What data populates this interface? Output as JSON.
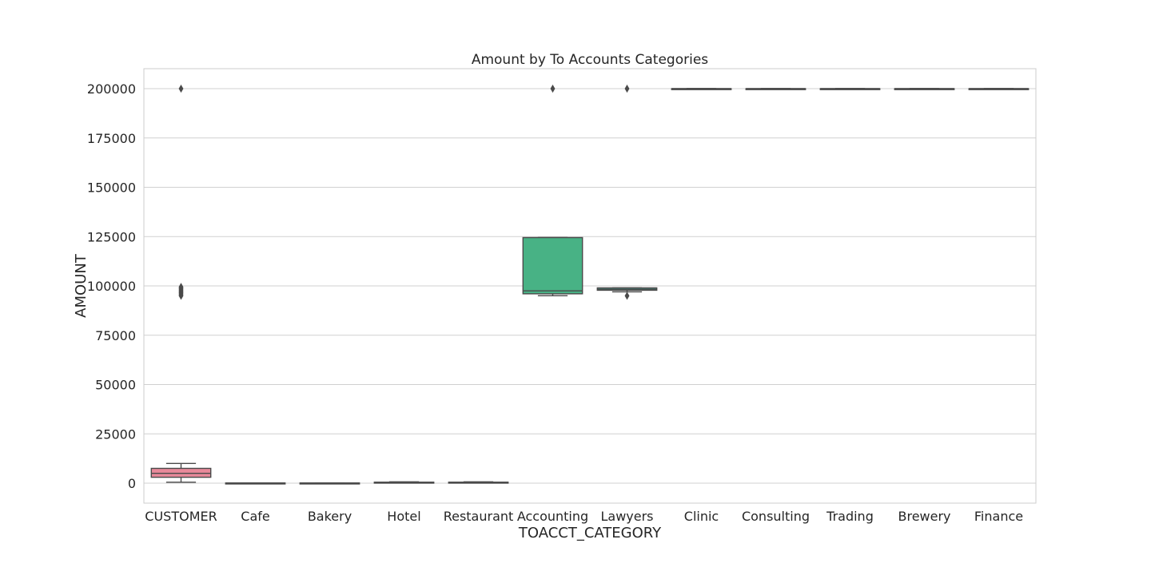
{
  "chart_data": {
    "type": "box",
    "title": "Amount by To Accounts Categories",
    "xlabel": "TOACCT_CATEGORY",
    "ylabel": "AMOUNT",
    "ylim": [
      -10000,
      210000
    ],
    "yticks": [
      0,
      25000,
      50000,
      75000,
      100000,
      125000,
      150000,
      175000,
      200000
    ],
    "grid": true,
    "legend": "none",
    "categories": [
      "CUSTOMER",
      "Cafe",
      "Bakery",
      "Hotel",
      "Restaurant",
      "Accounting",
      "Lawyers",
      "Clinic",
      "Consulting",
      "Trading",
      "Brewery",
      "Finance"
    ],
    "boxes": [
      {
        "category": "CUSTOMER",
        "whisker_low": 500,
        "q1": 3000,
        "median": 5000,
        "q3": 7500,
        "whisker_high": 10000,
        "outliers": [
          95000,
          95500,
          96000,
          96500,
          97000,
          97500,
          98000,
          98500,
          99000,
          99500,
          200000
        ],
        "color": "#e8899a"
      },
      {
        "category": "Cafe",
        "whisker_low": 20,
        "q1": 40,
        "median": 60,
        "q3": 90,
        "whisker_high": 120,
        "outliers": [],
        "color": "#d99a4a"
      },
      {
        "category": "Bakery",
        "whisker_low": 20,
        "q1": 40,
        "median": 60,
        "q3": 90,
        "whisker_high": 120,
        "outliers": [],
        "color": "#b3a243"
      },
      {
        "category": "Hotel",
        "whisker_low": 100,
        "q1": 200,
        "median": 350,
        "q3": 500,
        "whisker_high": 700,
        "outliers": [],
        "color": "#8cac45"
      },
      {
        "category": "Restaurant",
        "whisker_low": 100,
        "q1": 200,
        "median": 350,
        "q3": 500,
        "whisker_high": 700,
        "outliers": [],
        "color": "#4fb35b"
      },
      {
        "category": "Accounting",
        "whisker_low": 95000,
        "q1": 96000,
        "median": 97500,
        "q3": 124500,
        "whisker_high": 124500,
        "outliers": [
          200000
        ],
        "color": "#48b285"
      },
      {
        "category": "Lawyers",
        "whisker_low": 97000,
        "q1": 97800,
        "median": 98300,
        "q3": 99000,
        "whisker_high": 99000,
        "outliers": [
          95000,
          200000
        ],
        "color": "#4aaf9f"
      },
      {
        "category": "Clinic",
        "whisker_low": 200000,
        "q1": 200000,
        "median": 200000,
        "q3": 200000,
        "whisker_high": 200000,
        "outliers": [],
        "color": "#4eacb6"
      },
      {
        "category": "Consulting",
        "whisker_low": 200000,
        "q1": 200000,
        "median": 200000,
        "q3": 200000,
        "whisker_high": 200000,
        "outliers": [],
        "color": "#57a4d8"
      },
      {
        "category": "Trading",
        "whisker_low": 200000,
        "q1": 200000,
        "median": 200000,
        "q3": 200000,
        "whisker_high": 200000,
        "outliers": [],
        "color": "#a28ef0"
      },
      {
        "category": "Brewery",
        "whisker_low": 200000,
        "q1": 200000,
        "median": 200000,
        "q3": 200000,
        "whisker_high": 200000,
        "outliers": [],
        "color": "#d884e8"
      },
      {
        "category": "Finance",
        "whisker_low": 200000,
        "q1": 200000,
        "median": 200000,
        "q3": 200000,
        "whisker_high": 200000,
        "outliers": [],
        "color": "#ea84c4"
      }
    ],
    "colors": {
      "box_edge": "#4a4a4a",
      "grid": "#d0d0d0",
      "frame": "#cccccc",
      "text": "#262626"
    }
  }
}
